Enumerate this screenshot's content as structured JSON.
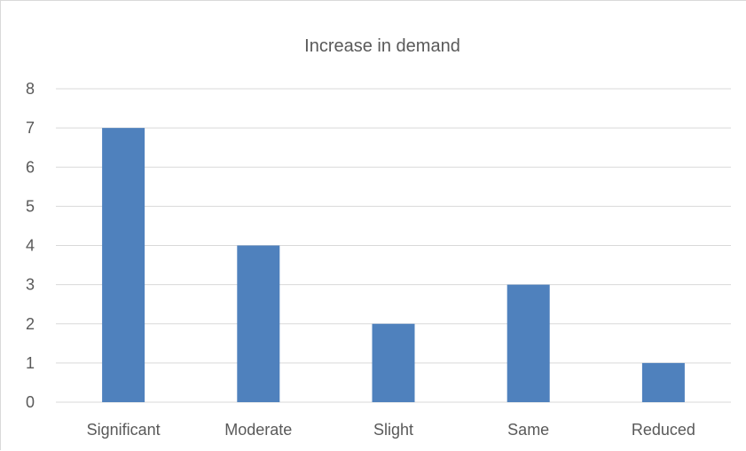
{
  "chart_data": {
    "type": "bar",
    "title": "Increase in demand",
    "xlabel": "",
    "ylabel": "",
    "categories": [
      "Significant",
      "Moderate",
      "Slight",
      "Same",
      "Reduced"
    ],
    "values": [
      7,
      4,
      2,
      3,
      1
    ],
    "ylim": [
      0,
      8
    ],
    "yticks": [
      "0",
      "1",
      "2",
      "3",
      "4",
      "5",
      "6",
      "7",
      "8"
    ],
    "grid": true,
    "legend": "none",
    "bar_color": "#4f81bd"
  }
}
